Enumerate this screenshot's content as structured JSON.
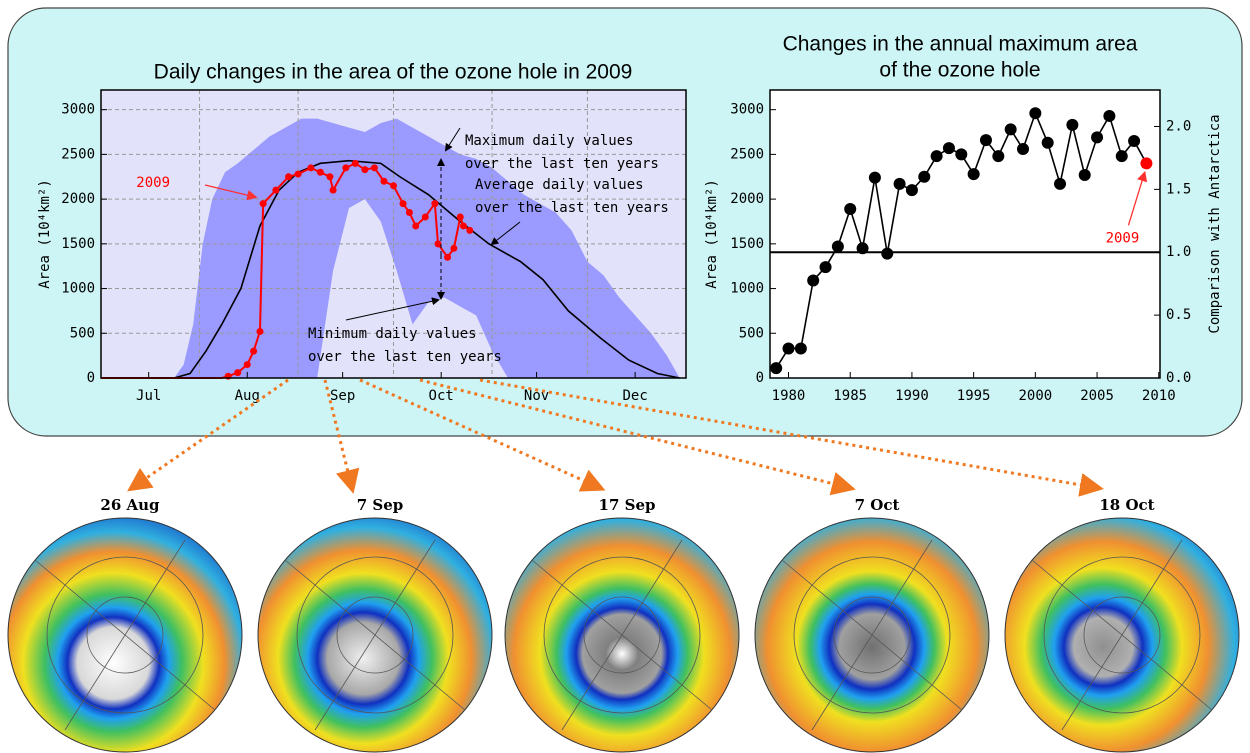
{
  "chart_data": [
    {
      "type": "line",
      "title": "Daily changes in the area of the ozone hole in 2009",
      "y_label": "Area (10⁴km²)",
      "xlim": [
        182,
        366
      ],
      "ylim": [
        0,
        3220
      ],
      "xticks": [
        {
          "value": 197,
          "label": "Jul"
        },
        {
          "value": 228,
          "label": "Aug"
        },
        {
          "value": 258,
          "label": "Sep"
        },
        {
          "value": 289,
          "label": "Oct"
        },
        {
          "value": 319,
          "label": "Nov"
        },
        {
          "value": 350,
          "label": "Dec"
        }
      ],
      "xgrid": [
        213,
        244,
        274,
        305,
        335
      ],
      "yticks": [
        0,
        500,
        1000,
        1500,
        2000,
        2500,
        3000
      ],
      "grid": true,
      "plot_bg": "#e2e2fa",
      "band": {
        "color": "#9a9aff",
        "x": [
          205,
          208,
          211,
          214,
          217,
          221,
          225,
          230,
          235,
          240,
          245,
          250,
          255,
          260,
          265,
          270,
          275,
          280,
          285,
          290,
          295,
          300,
          305,
          310,
          315,
          320,
          325,
          330,
          335,
          340,
          345,
          350,
          355,
          360,
          364
        ],
        "upper": [
          0,
          150,
          600,
          1500,
          2000,
          2300,
          2400,
          2550,
          2700,
          2800,
          2900,
          2900,
          2850,
          2800,
          2750,
          2850,
          2900,
          2800,
          2700,
          2600,
          2500,
          2450,
          2350,
          2200,
          2050,
          1950,
          1850,
          1650,
          1300,
          1150,
          900,
          700,
          500,
          250,
          0
        ],
        "lower": [
          0,
          0,
          0,
          0,
          0,
          0,
          0,
          0,
          0,
          0,
          0,
          0,
          1200,
          1900,
          2000,
          1750,
          1200,
          600,
          850,
          900,
          800,
          700,
          300,
          0,
          0,
          0,
          0,
          0,
          0,
          0,
          0,
          0,
          0,
          0,
          0
        ]
      },
      "series": [
        {
          "color": "#000000",
          "markers": false,
          "x": [
            182,
            205,
            210,
            215,
            220,
            226,
            232,
            238,
            244,
            251,
            260,
            270,
            276,
            285,
            295,
            304,
            314,
            321,
            329,
            339,
            348,
            357,
            364
          ],
          "values": [
            0,
            0,
            50,
            300,
            600,
            1000,
            1700,
            2100,
            2300,
            2400,
            2430,
            2400,
            2250,
            2050,
            1750,
            1500,
            1300,
            1100,
            750,
            450,
            200,
            50,
            0
          ]
        },
        {
          "color": "#ff0000",
          "markers": true,
          "x": [
            182,
            190,
            200,
            210,
            220,
            222,
            225,
            228,
            230,
            232,
            233,
            237,
            241,
            244,
            248,
            251,
            254,
            255,
            259,
            262,
            265,
            268,
            271,
            274,
            277,
            279,
            281,
            284,
            287,
            288,
            291,
            293,
            295,
            296,
            298
          ],
          "values": [
            0,
            0,
            0,
            0,
            0,
            20,
            60,
            150,
            300,
            520,
            1950,
            2100,
            2250,
            2280,
            2350,
            2300,
            2250,
            2100,
            2350,
            2400,
            2330,
            2350,
            2200,
            2150,
            1950,
            1850,
            1700,
            1800,
            1950,
            1500,
            1350,
            1450,
            1800,
            1700,
            1650
          ]
        }
      ],
      "annotations": [
        {
          "text": [
            "2009"
          ],
          "color": "#ff0000"
        },
        {
          "text": [
            "Maximum daily values",
            "over the last ten years"
          ],
          "color": "#000000"
        },
        {
          "text": [
            "Average daily values",
            "over the last ten years"
          ],
          "color": "#000000"
        },
        {
          "text": [
            "Minimum daily values",
            "over the last ten years"
          ],
          "color": "#000000"
        }
      ]
    },
    {
      "type": "line",
      "title": [
        "Changes in the annual maximum area",
        "of the ozone hole"
      ],
      "y_label": "Area (10⁴km²)",
      "y2_label": "Comparison with Antarctica",
      "xlim": [
        1978.5,
        2010.1
      ],
      "ylim": [
        0,
        3220
      ],
      "y2lim": [
        0,
        2.29
      ],
      "xticks": [
        1980,
        1985,
        1990,
        1995,
        2000,
        2005,
        2010
      ],
      "yticks": [
        0,
        500,
        1000,
        1500,
        2000,
        2500,
        3000
      ],
      "y2ticks": [
        {
          "value": 0,
          "label": "0.0"
        },
        0.5,
        {
          "value": 1,
          "label": "1.0"
        },
        1.5,
        {
          "value": 2,
          "label": "2.0"
        }
      ],
      "grid": false,
      "plot_bg": "#ffffff",
      "hline": {
        "axis": "y2",
        "value": 1
      },
      "series": [
        {
          "color": "#000000",
          "markers": true,
          "x": [
            1979,
            1980,
            1981,
            1982,
            1983,
            1984,
            1985,
            1986,
            1987,
            1988,
            1989,
            1990,
            1991,
            1992,
            1993,
            1994,
            1995,
            1996,
            1997,
            1998,
            1999,
            2000,
            2001,
            2002,
            2003,
            2004,
            2005,
            2006,
            2007,
            2008,
            2009
          ],
          "values": [
            110,
            330,
            330,
            1090,
            1240,
            1470,
            1890,
            1450,
            2240,
            1390,
            2170,
            2100,
            2250,
            2480,
            2570,
            2500,
            2280,
            2660,
            2480,
            2780,
            2560,
            2960,
            2630,
            2170,
            2830,
            2270,
            2690,
            2930,
            2480,
            2650,
            2400
          ]
        }
      ],
      "highlight": {
        "index": 30,
        "color": "#ff0000",
        "label": "2009"
      }
    }
  ],
  "maps": {
    "labels": [
      "26 Aug",
      "7 Sep",
      "17 Sep",
      "7 Oct",
      "18 Oct"
    ]
  }
}
